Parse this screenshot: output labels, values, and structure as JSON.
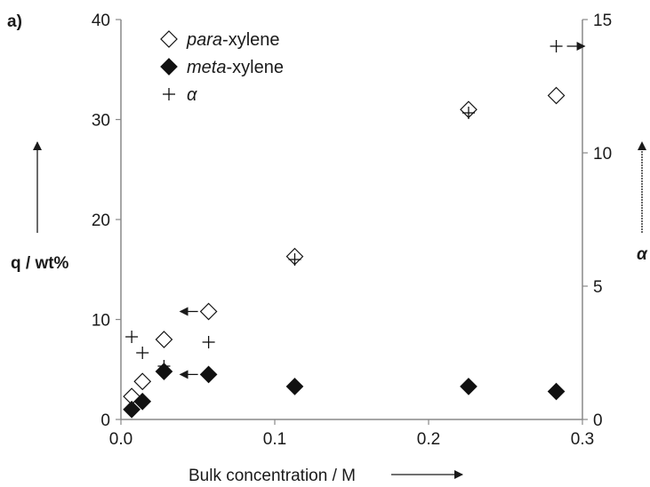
{
  "chart_data": {
    "type": "scatter",
    "panel_label": "a)",
    "xlabel": "Bulk concentration / M",
    "ylabel_left": "q  / wt%",
    "ylabel_right": "α",
    "xlim": [
      0,
      0.3
    ],
    "ylim_left": [
      0,
      40
    ],
    "ylim_right": [
      0,
      15
    ],
    "x_ticks": [
      "0.0",
      "0.1",
      "0.2",
      "0.3"
    ],
    "y_left_ticks": [
      "0",
      "10",
      "20",
      "30",
      "40"
    ],
    "y_right_ticks": [
      "0",
      "5",
      "10",
      "15"
    ],
    "grid": false,
    "legend_placement": "top-left",
    "series": [
      {
        "name": "para-xylene",
        "name_italic": "para",
        "name_rest": "-xylene",
        "axis": "left",
        "marker": "open-diamond",
        "x": [
          0.007,
          0.014,
          0.028,
          0.057,
          0.113,
          0.226,
          0.283
        ],
        "y": [
          2.3,
          3.8,
          8.0,
          10.8,
          16.3,
          31.0,
          32.4
        ]
      },
      {
        "name": "meta-xylene",
        "name_italic": "meta",
        "name_rest": "-xylene",
        "axis": "left",
        "marker": "filled-diamond",
        "x": [
          0.007,
          0.014,
          0.028,
          0.057,
          0.113,
          0.226,
          0.283
        ],
        "y": [
          1.0,
          1.8,
          4.8,
          4.5,
          3.3,
          3.3,
          2.8
        ]
      },
      {
        "name": "α",
        "axis": "right",
        "marker": "plus",
        "x": [
          0.007,
          0.014,
          0.028,
          0.057,
          0.113,
          0.226,
          0.283
        ],
        "y": [
          3.1,
          2.5,
          2.0,
          2.9,
          6.0,
          11.5,
          14.0
        ]
      }
    ],
    "annotations": [
      {
        "type": "series-axis-arrow",
        "direction": "left",
        "series": "para-xylene",
        "x": 0.057,
        "y": 10.8,
        "axis": "left"
      },
      {
        "type": "series-axis-arrow",
        "direction": "left",
        "series": "meta-xylene",
        "x": 0.057,
        "y": 4.5,
        "axis": "left"
      },
      {
        "type": "series-axis-arrow",
        "direction": "right",
        "series": "α",
        "x": 0.283,
        "y": 14.0,
        "axis": "right"
      }
    ]
  }
}
